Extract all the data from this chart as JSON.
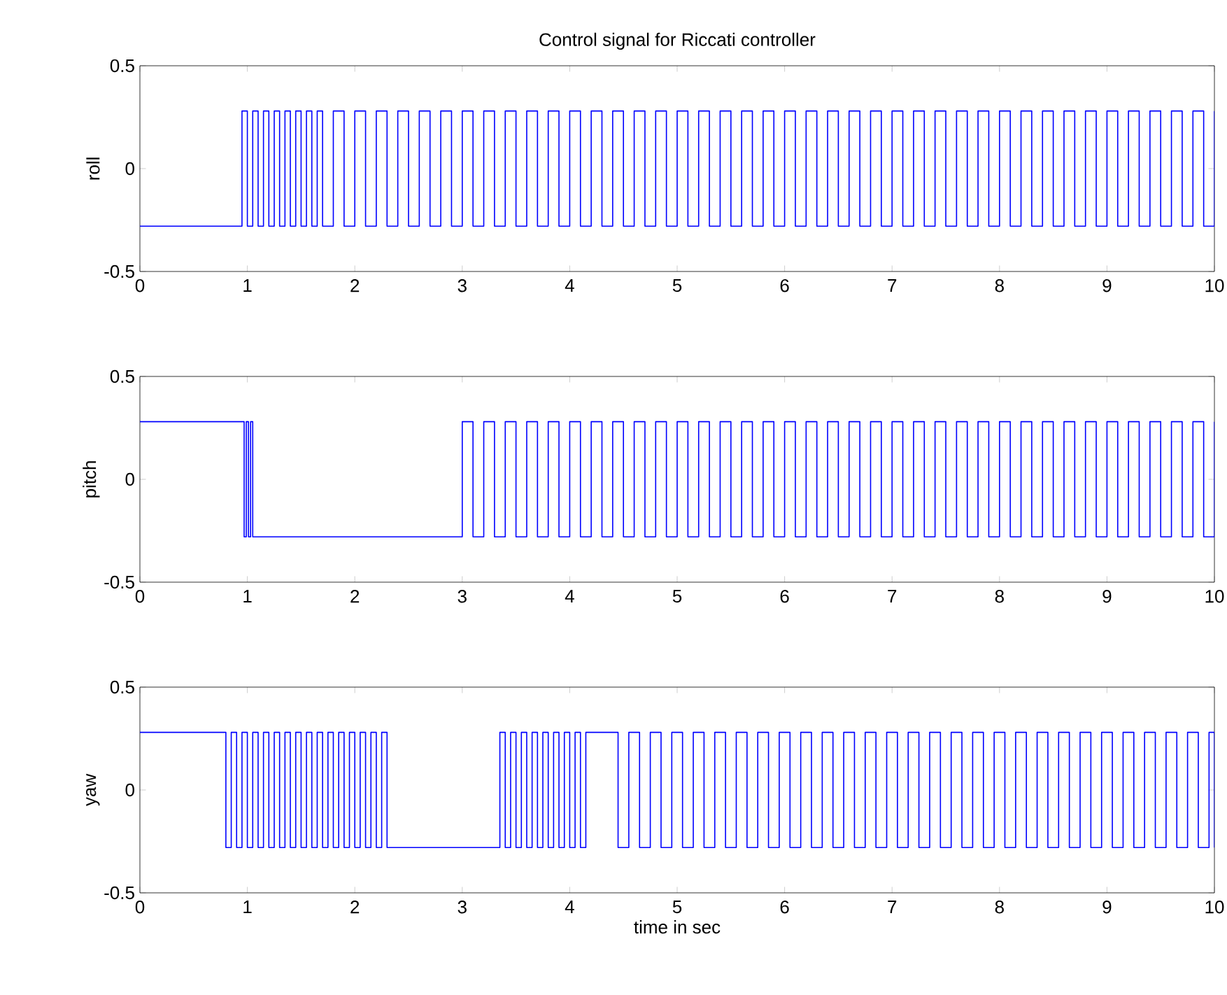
{
  "chart_data": [
    {
      "type": "step",
      "title": "Control signal for Riccati controller",
      "ylabel": "roll",
      "color": "#0000ff",
      "xlim": [
        0,
        10
      ],
      "ylim": [
        -0.5,
        0.5
      ],
      "xticks": [
        0,
        1,
        2,
        3,
        4,
        5,
        6,
        7,
        8,
        9,
        10
      ],
      "yticks": [
        -0.5,
        0,
        0.5
      ],
      "x": [
        0,
        0.95,
        1,
        1.05,
        1.1,
        1.15,
        1.2,
        1.25,
        1.3,
        1.35,
        1.4,
        1.45,
        1.5,
        1.55,
        1.6,
        1.65,
        1.7,
        1.8,
        1.9,
        2,
        2.1,
        2.2,
        2.3,
        2.4,
        2.5,
        2.6,
        2.7,
        2.8,
        2.9,
        3,
        3.1,
        3.2,
        3.3,
        3.4,
        3.5,
        3.6,
        3.7,
        3.8,
        3.9,
        4,
        4.1,
        4.2,
        4.3,
        4.4,
        4.5,
        4.6,
        4.7,
        4.8,
        4.9,
        5,
        5.1,
        5.2,
        5.3,
        5.4,
        5.5,
        5.6,
        5.7,
        5.8,
        5.9,
        6,
        6.1,
        6.2,
        6.3,
        6.4,
        6.5,
        6.6,
        6.7,
        6.8,
        6.9,
        7,
        7.1,
        7.2,
        7.3,
        7.4,
        7.5,
        7.6,
        7.7,
        7.8,
        7.9,
        8,
        8.1,
        8.2,
        8.3,
        8.4,
        8.5,
        8.6,
        8.7,
        8.8,
        8.9,
        9,
        9.1,
        9.2,
        9.3,
        9.4,
        9.5,
        9.6,
        9.7,
        9.8,
        9.9,
        10
      ],
      "values": [
        -0.28,
        0.28,
        -0.28,
        0.28,
        -0.28,
        0.28,
        -0.28,
        0.28,
        -0.28,
        0.28,
        -0.28,
        0.28,
        -0.28,
        0.28,
        -0.28,
        0.28,
        -0.28,
        0.28,
        -0.28,
        0.28,
        -0.28,
        0.28,
        -0.28,
        0.28,
        -0.28,
        0.28,
        -0.28,
        0.28,
        -0.28,
        0.28,
        -0.28,
        0.28,
        -0.28,
        0.28,
        -0.28,
        0.28,
        -0.28,
        0.28,
        -0.28,
        0.28,
        -0.28,
        0.28,
        -0.28,
        0.28,
        -0.28,
        0.28,
        -0.28,
        0.28,
        -0.28,
        0.28,
        -0.28,
        0.28,
        -0.28,
        0.28,
        -0.28,
        0.28,
        -0.28,
        0.28,
        -0.28,
        0.28,
        -0.28,
        0.28,
        -0.28,
        0.28,
        -0.28,
        0.28,
        -0.28,
        0.28,
        -0.28,
        0.28,
        -0.28,
        0.28,
        -0.28,
        0.28,
        -0.28,
        0.28,
        -0.28,
        0.28,
        -0.28,
        0.28,
        -0.28,
        0.28,
        -0.28,
        0.28,
        -0.28,
        0.28,
        -0.28,
        0.28,
        -0.28,
        0.28,
        -0.28,
        0.28,
        -0.28,
        0.28,
        -0.28,
        0.28,
        -0.28,
        0.28,
        -0.28,
        0.28
      ]
    },
    {
      "type": "step",
      "ylabel": "pitch",
      "color": "#0000ff",
      "xlim": [
        0,
        10
      ],
      "ylim": [
        -0.5,
        0.5
      ],
      "xticks": [
        0,
        1,
        2,
        3,
        4,
        5,
        6,
        7,
        8,
        9,
        10
      ],
      "yticks": [
        -0.5,
        0,
        0.5
      ],
      "x": [
        0,
        0.97,
        0.99,
        1.01,
        1.03,
        1.05,
        3,
        3.1,
        3.2,
        3.3,
        3.4,
        3.5,
        3.6,
        3.7,
        3.8,
        3.9,
        4,
        4.1,
        4.2,
        4.3,
        4.4,
        4.5,
        4.6,
        4.7,
        4.8,
        4.9,
        5,
        5.1,
        5.2,
        5.3,
        5.4,
        5.5,
        5.6,
        5.7,
        5.8,
        5.9,
        6,
        6.1,
        6.2,
        6.3,
        6.4,
        6.5,
        6.6,
        6.7,
        6.8,
        6.9,
        7,
        7.1,
        7.2,
        7.3,
        7.4,
        7.5,
        7.6,
        7.7,
        7.8,
        7.9,
        8,
        8.1,
        8.2,
        8.3,
        8.4,
        8.5,
        8.6,
        8.7,
        8.8,
        8.9,
        9,
        9.1,
        9.2,
        9.3,
        9.4,
        9.5,
        9.6,
        9.7,
        9.8,
        9.9,
        10
      ],
      "values": [
        0.28,
        -0.28,
        0.28,
        -0.28,
        0.28,
        -0.28,
        0.28,
        -0.28,
        0.28,
        -0.28,
        0.28,
        -0.28,
        0.28,
        -0.28,
        0.28,
        -0.28,
        0.28,
        -0.28,
        0.28,
        -0.28,
        0.28,
        -0.28,
        0.28,
        -0.28,
        0.28,
        -0.28,
        0.28,
        -0.28,
        0.28,
        -0.28,
        0.28,
        -0.28,
        0.28,
        -0.28,
        0.28,
        -0.28,
        0.28,
        -0.28,
        0.28,
        -0.28,
        0.28,
        -0.28,
        0.28,
        -0.28,
        0.28,
        -0.28,
        0.28,
        -0.28,
        0.28,
        -0.28,
        0.28,
        -0.28,
        0.28,
        -0.28,
        0.28,
        -0.28,
        0.28,
        -0.28,
        0.28,
        -0.28,
        0.28,
        -0.28,
        0.28,
        -0.28,
        0.28,
        -0.28,
        0.28,
        -0.28,
        0.28,
        -0.28,
        0.28,
        -0.28,
        0.28,
        -0.28,
        0.28,
        -0.28,
        0.28
      ]
    },
    {
      "type": "step",
      "ylabel": "yaw",
      "xlabel": "time in sec",
      "color": "#0000ff",
      "xlim": [
        0,
        10
      ],
      "ylim": [
        -0.5,
        0.5
      ],
      "xticks": [
        0,
        1,
        2,
        3,
        4,
        5,
        6,
        7,
        8,
        9,
        10
      ],
      "yticks": [
        -0.5,
        0,
        0.5
      ],
      "x": [
        0,
        0.8,
        0.85,
        0.9,
        0.95,
        1,
        1.05,
        1.1,
        1.15,
        1.2,
        1.25,
        1.3,
        1.35,
        1.4,
        1.45,
        1.5,
        1.55,
        1.6,
        1.65,
        1.7,
        1.75,
        1.8,
        1.85,
        1.9,
        1.95,
        2,
        2.05,
        2.1,
        2.15,
        2.2,
        2.25,
        2.3,
        3.35,
        3.4,
        3.45,
        3.5,
        3.55,
        3.6,
        3.65,
        3.7,
        3.75,
        3.8,
        3.85,
        3.9,
        3.95,
        4,
        4.05,
        4.1,
        4.15,
        4.45,
        4.55,
        4.65,
        4.75,
        4.85,
        4.95,
        5.05,
        5.15,
        5.25,
        5.35,
        5.45,
        5.55,
        5.65,
        5.75,
        5.85,
        5.95,
        6.05,
        6.15,
        6.25,
        6.35,
        6.45,
        6.55,
        6.65,
        6.75,
        6.85,
        6.95,
        7.05,
        7.15,
        7.25,
        7.35,
        7.45,
        7.55,
        7.65,
        7.75,
        7.85,
        7.95,
        8.05,
        8.15,
        8.25,
        8.35,
        8.45,
        8.55,
        8.65,
        8.75,
        8.85,
        8.95,
        9.05,
        9.15,
        9.25,
        9.35,
        9.45,
        9.55,
        9.65,
        9.75,
        9.85,
        9.95,
        10
      ],
      "values": [
        0.28,
        -0.28,
        0.28,
        -0.28,
        0.28,
        -0.28,
        0.28,
        -0.28,
        0.28,
        -0.28,
        0.28,
        -0.28,
        0.28,
        -0.28,
        0.28,
        -0.28,
        0.28,
        -0.28,
        0.28,
        -0.28,
        0.28,
        -0.28,
        0.28,
        -0.28,
        0.28,
        -0.28,
        0.28,
        -0.28,
        0.28,
        -0.28,
        0.28,
        -0.28,
        0.28,
        -0.28,
        0.28,
        -0.28,
        0.28,
        -0.28,
        0.28,
        -0.28,
        0.28,
        -0.28,
        0.28,
        -0.28,
        0.28,
        -0.28,
        0.28,
        -0.28,
        0.28,
        -0.28,
        0.28,
        -0.28,
        0.28,
        -0.28,
        0.28,
        -0.28,
        0.28,
        -0.28,
        0.28,
        -0.28,
        0.28,
        -0.28,
        0.28,
        -0.28,
        0.28,
        -0.28,
        0.28,
        -0.28,
        0.28,
        -0.28,
        0.28,
        -0.28,
        0.28,
        -0.28,
        0.28,
        -0.28,
        0.28,
        -0.28,
        0.28,
        -0.28,
        0.28,
        -0.28,
        0.28,
        -0.28,
        0.28,
        -0.28,
        0.28,
        -0.28,
        0.28,
        -0.28,
        0.28,
        -0.28,
        0.28,
        -0.28,
        0.28,
        -0.28,
        0.28,
        -0.28,
        0.28,
        -0.28,
        0.28,
        -0.28,
        0.28,
        -0.28,
        0.28,
        -0.28
      ]
    }
  ]
}
